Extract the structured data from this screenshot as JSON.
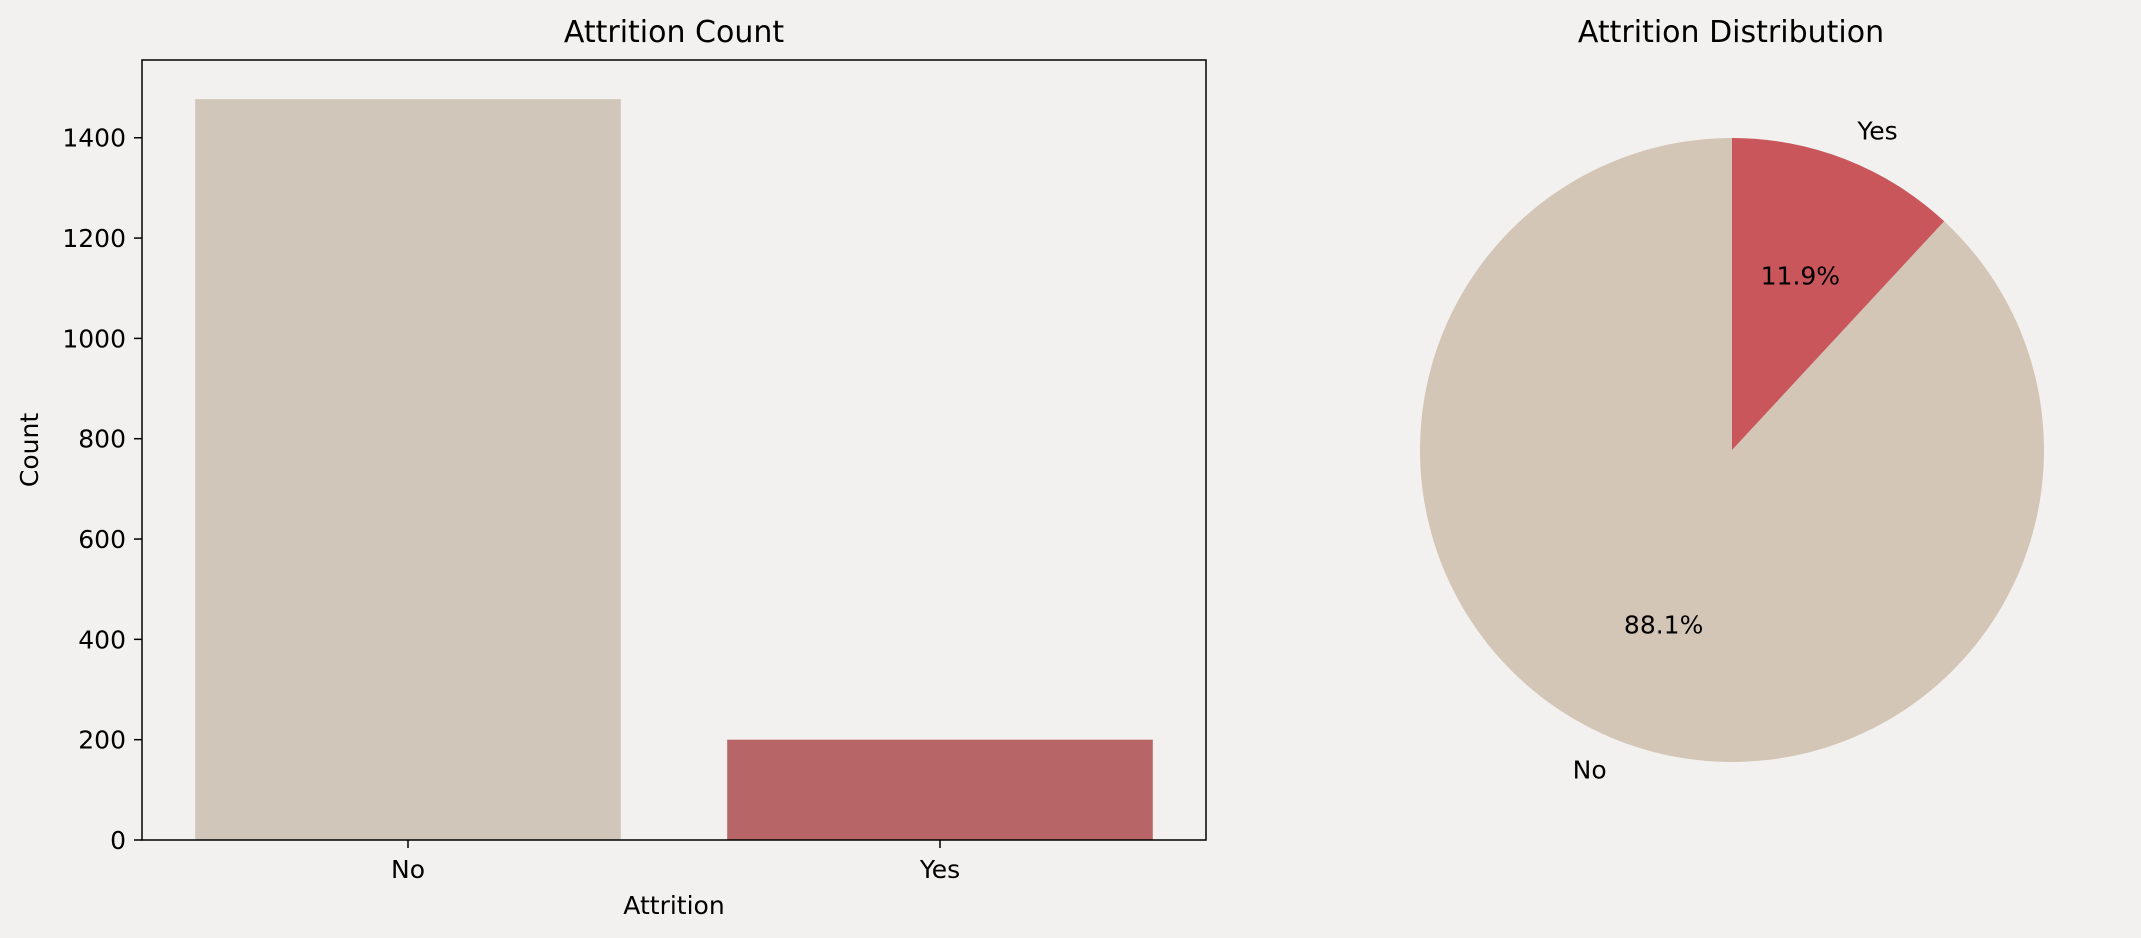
{
  "chart_data": [
    {
      "type": "bar",
      "title": "Attrition Count",
      "xlabel": "Attrition",
      "ylabel": "Count",
      "categories": [
        "No",
        "Yes"
      ],
      "values": [
        1477,
        200
      ],
      "colors": [
        "#d0c6ba",
        "#b86567"
      ],
      "ylim": [
        0,
        1555
      ],
      "yticks": [
        0,
        200,
        400,
        600,
        800,
        1000,
        1200,
        1400
      ],
      "grid": false
    },
    {
      "type": "pie",
      "title": "Attrition Distribution",
      "labels": [
        "No",
        "Yes"
      ],
      "values": [
        88.1,
        11.9
      ],
      "pct_labels": [
        "88.1%",
        "11.9%"
      ],
      "colors": [
        "#d3c6b6",
        "#c8565b"
      ],
      "start_angle_deg": 90
    }
  ]
}
